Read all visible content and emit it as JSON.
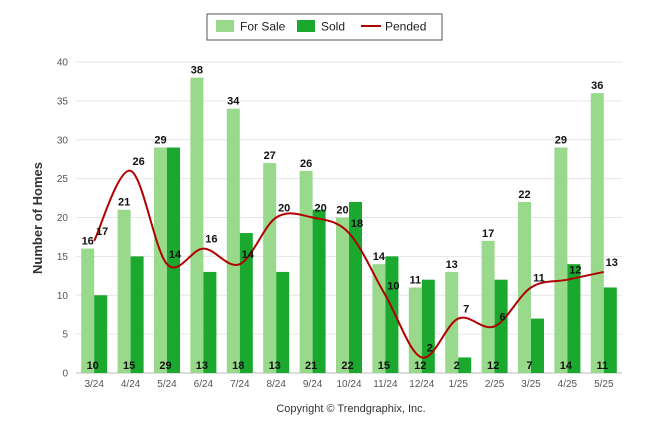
{
  "chart_data": {
    "type": "bar",
    "categories": [
      "3/24",
      "4/24",
      "5/24",
      "6/24",
      "7/24",
      "8/24",
      "9/24",
      "10/24",
      "11/24",
      "12/24",
      "1/25",
      "2/25",
      "3/25",
      "4/25",
      "5/25"
    ],
    "series": [
      {
        "name": "For Sale",
        "type": "bar",
        "color": "#99d98c",
        "values": [
          16,
          21,
          29,
          38,
          34,
          27,
          26,
          20,
          14,
          11,
          13,
          17,
          22,
          29,
          36
        ]
      },
      {
        "name": "Sold",
        "type": "bar",
        "color": "#1aa82e",
        "values": [
          10,
          15,
          29,
          13,
          18,
          13,
          21,
          22,
          15,
          12,
          2,
          12,
          7,
          14,
          11
        ]
      },
      {
        "name": "Pended",
        "type": "line",
        "color": "#b00000",
        "values": [
          17,
          26,
          14,
          16,
          14,
          20,
          20,
          18,
          10,
          2,
          7,
          6,
          11,
          12,
          13
        ]
      }
    ],
    "ylabel": "Number of Homes",
    "xlabel": "",
    "yticks": [
      "0",
      "5",
      "10",
      "15",
      "20",
      "25",
      "30",
      "35",
      "40"
    ],
    "ylim": [
      0,
      40
    ],
    "grid": true,
    "legend_position": "top-center"
  },
  "footer": {
    "copyright": "Copyright © Trendgraphix, Inc."
  }
}
